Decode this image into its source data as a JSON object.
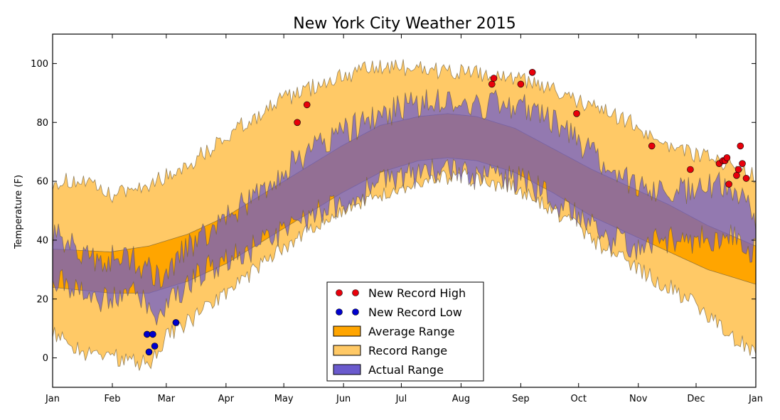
{
  "chart_data": {
    "type": "area",
    "title": "New York City Weather 2015",
    "xlabel": "",
    "ylabel": "Temperature (F)",
    "ylim": [
      -10,
      110
    ],
    "y_ticks": [
      0,
      20,
      40,
      60,
      80,
      100
    ],
    "x_range_days": [
      0,
      365
    ],
    "x_ticks": [
      {
        "label": "Jan",
        "day": 0
      },
      {
        "label": "Feb",
        "day": 31
      },
      {
        "label": "Mar",
        "day": 59
      },
      {
        "label": "Apr",
        "day": 90
      },
      {
        "label": "May",
        "day": 120
      },
      {
        "label": "Jun",
        "day": 151
      },
      {
        "label": "Jul",
        "day": 181
      },
      {
        "label": "Aug",
        "day": 212
      },
      {
        "label": "Sep",
        "day": 243
      },
      {
        "label": "Oct",
        "day": 273
      },
      {
        "label": "Nov",
        "day": 304
      },
      {
        "label": "Dec",
        "day": 334
      },
      {
        "label": "Jan",
        "day": 365
      }
    ],
    "grid": false,
    "legend_position": "bottom-center",
    "series": [
      {
        "name": "Record Range",
        "kind": "band",
        "color": "#ffc966",
        "low_anchors": [
          [
            0,
            8
          ],
          [
            15,
            2
          ],
          [
            35,
            0
          ],
          [
            50,
            -2
          ],
          [
            60,
            8
          ],
          [
            75,
            14
          ],
          [
            90,
            22
          ],
          [
            105,
            30
          ],
          [
            120,
            38
          ],
          [
            135,
            44
          ],
          [
            150,
            50
          ],
          [
            165,
            54
          ],
          [
            180,
            58
          ],
          [
            195,
            60
          ],
          [
            210,
            62
          ],
          [
            225,
            60
          ],
          [
            240,
            58
          ],
          [
            255,
            52
          ],
          [
            270,
            46
          ],
          [
            285,
            38
          ],
          [
            300,
            32
          ],
          [
            315,
            26
          ],
          [
            330,
            20
          ],
          [
            345,
            12
          ],
          [
            355,
            6
          ],
          [
            365,
            2
          ]
        ],
        "high_anchors": [
          [
            0,
            60
          ],
          [
            15,
            60
          ],
          [
            30,
            55
          ],
          [
            45,
            58
          ],
          [
            60,
            62
          ],
          [
            75,
            68
          ],
          [
            90,
            75
          ],
          [
            105,
            82
          ],
          [
            120,
            88
          ],
          [
            135,
            92
          ],
          [
            150,
            96
          ],
          [
            165,
            98
          ],
          [
            180,
            99
          ],
          [
            195,
            98
          ],
          [
            210,
            97
          ],
          [
            225,
            96
          ],
          [
            240,
            95
          ],
          [
            255,
            92
          ],
          [
            270,
            88
          ],
          [
            285,
            84
          ],
          [
            300,
            80
          ],
          [
            315,
            74
          ],
          [
            330,
            70
          ],
          [
            345,
            68
          ],
          [
            355,
            64
          ],
          [
            365,
            62
          ]
        ],
        "noise": 3
      },
      {
        "name": "Average Range",
        "kind": "band",
        "color": "#ffa500",
        "low_anchors": [
          [
            0,
            24
          ],
          [
            30,
            22
          ],
          [
            50,
            22
          ],
          [
            70,
            26
          ],
          [
            90,
            32
          ],
          [
            110,
            40
          ],
          [
            130,
            48
          ],
          [
            150,
            56
          ],
          [
            170,
            63
          ],
          [
            190,
            67
          ],
          [
            205,
            68
          ],
          [
            220,
            67
          ],
          [
            240,
            63
          ],
          [
            260,
            56
          ],
          [
            280,
            48
          ],
          [
            300,
            42
          ],
          [
            320,
            36
          ],
          [
            340,
            30
          ],
          [
            365,
            25
          ]
        ],
        "high_anchors": [
          [
            0,
            37
          ],
          [
            30,
            36
          ],
          [
            50,
            38
          ],
          [
            70,
            42
          ],
          [
            90,
            48
          ],
          [
            110,
            56
          ],
          [
            130,
            64
          ],
          [
            150,
            72
          ],
          [
            170,
            79
          ],
          [
            190,
            82
          ],
          [
            205,
            83
          ],
          [
            220,
            82
          ],
          [
            240,
            78
          ],
          [
            260,
            71
          ],
          [
            280,
            64
          ],
          [
            300,
            58
          ],
          [
            320,
            52
          ],
          [
            340,
            45
          ],
          [
            365,
            38
          ]
        ],
        "noise": 0
      },
      {
        "name": "Actual Range",
        "kind": "band",
        "color": "#6a5acd",
        "low_anchors": [
          [
            0,
            28
          ],
          [
            20,
            20
          ],
          [
            40,
            22
          ],
          [
            55,
            14
          ],
          [
            65,
            22
          ],
          [
            80,
            30
          ],
          [
            95,
            34
          ],
          [
            110,
            40
          ],
          [
            125,
            44
          ],
          [
            140,
            50
          ],
          [
            155,
            54
          ],
          [
            170,
            60
          ],
          [
            185,
            62
          ],
          [
            200,
            64
          ],
          [
            215,
            62
          ],
          [
            230,
            62
          ],
          [
            245,
            60
          ],
          [
            260,
            54
          ],
          [
            275,
            46
          ],
          [
            290,
            40
          ],
          [
            305,
            38
          ],
          [
            320,
            40
          ],
          [
            335,
            40
          ],
          [
            350,
            42
          ],
          [
            365,
            36
          ]
        ],
        "high_anchors": [
          [
            0,
            42
          ],
          [
            20,
            34
          ],
          [
            40,
            34
          ],
          [
            55,
            28
          ],
          [
            65,
            34
          ],
          [
            80,
            42
          ],
          [
            95,
            50
          ],
          [
            110,
            58
          ],
          [
            125,
            66
          ],
          [
            140,
            74
          ],
          [
            155,
            78
          ],
          [
            170,
            82
          ],
          [
            185,
            86
          ],
          [
            200,
            88
          ],
          [
            215,
            86
          ],
          [
            230,
            86
          ],
          [
            245,
            86
          ],
          [
            260,
            80
          ],
          [
            275,
            72
          ],
          [
            290,
            64
          ],
          [
            305,
            58
          ],
          [
            320,
            56
          ],
          [
            335,
            58
          ],
          [
            350,
            60
          ],
          [
            365,
            48
          ]
        ],
        "noise": 5
      },
      {
        "name": "New Record High",
        "kind": "scatter",
        "color": "#e8000b",
        "points": [
          [
            127,
            80
          ],
          [
            132,
            86
          ],
          [
            228,
            93
          ],
          [
            229,
            95
          ],
          [
            243,
            93
          ],
          [
            249,
            97
          ],
          [
            272,
            83
          ],
          [
            311,
            72
          ],
          [
            331,
            64
          ],
          [
            346,
            66
          ],
          [
            348,
            67
          ],
          [
            349,
            67
          ],
          [
            350,
            68
          ],
          [
            351,
            59
          ],
          [
            355,
            62
          ],
          [
            356,
            64
          ],
          [
            357,
            72
          ],
          [
            358,
            66
          ],
          [
            360,
            61
          ]
        ]
      },
      {
        "name": "New Record Low",
        "kind": "scatter",
        "color": "#0000cd",
        "points": [
          [
            49,
            8
          ],
          [
            50,
            2
          ],
          [
            52,
            8
          ],
          [
            53,
            4
          ],
          [
            64,
            12
          ]
        ]
      }
    ],
    "legend": [
      {
        "label": "New Record High",
        "kind": "marker",
        "color": "#e8000b"
      },
      {
        "label": "New Record Low",
        "kind": "marker",
        "color": "#0000cd"
      },
      {
        "label": "Average Range",
        "kind": "patch",
        "color": "#ffa500"
      },
      {
        "label": "Record Range",
        "kind": "patch",
        "color": "#ffc966"
      },
      {
        "label": "Actual Range",
        "kind": "patch",
        "color": "#6a5acd"
      }
    ]
  }
}
